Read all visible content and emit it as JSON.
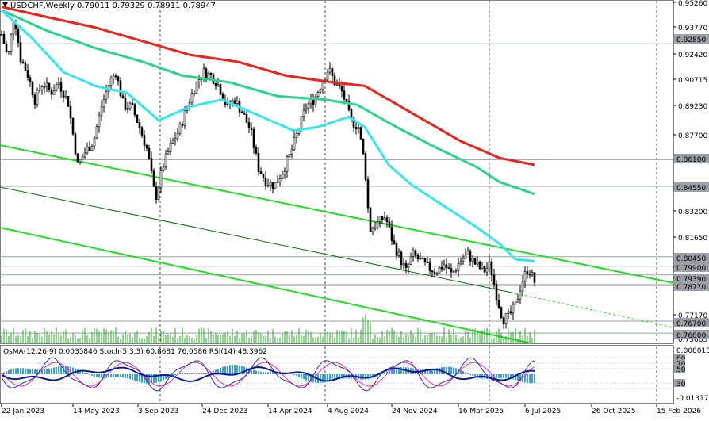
{
  "header": {
    "symbol": "USDCHF,Weekly",
    "ohlc": "0.79011 0.79329 0.78911 0.78947"
  },
  "price_axis": {
    "labels": [
      "0.95260",
      "0.93770",
      "0.92420",
      "0.90715",
      "0.89230",
      "0.87700",
      "0.84550",
      "0.83200",
      "0.81650",
      "0.79900",
      "0.79390",
      "0.77170",
      "0.76700",
      "0.76000",
      "0.75685"
    ],
    "tags": [
      {
        "text": "0.92850",
        "color": "#9aa0a6"
      },
      {
        "text": "0.86100",
        "color": "#9aa0a6"
      },
      {
        "text": "0.84550",
        "color": "#9aa0a6"
      },
      {
        "text": "0.80450",
        "color": "#9aa0a6"
      },
      {
        "text": "0.79900",
        "color": "#9aa0a6"
      },
      {
        "text": "0.79390",
        "color": "#9aa0a6"
      },
      {
        "text": "0.78770",
        "color": "#9aa0a6"
      },
      {
        "text": "0.76700",
        "color": "#9aa0a6"
      },
      {
        "text": "0.76000",
        "color": "#9aa0a6"
      }
    ]
  },
  "osc": {
    "label": "OsMA(12,26,9) 0.0035846  Stoch(5,3,3) 60.8681 76.0586  RSI(14) 48.3962",
    "axis": [
      "0.0080188",
      "80",
      "70",
      "50",
      "30",
      "-0.0131727"
    ]
  },
  "time_axis": [
    "22 Jan 2023",
    "14 May 2023",
    "3 Sep 2023",
    "24 Dec 2023",
    "14 Apr 2024",
    "4 Aug 2024",
    "24 Nov 2024",
    "16 Mar 2025",
    "6 Jul 2025",
    "26 Oct 2025",
    "15 Feb 2026"
  ],
  "colors": {
    "ma_red": "#e8251c",
    "ma_green": "#2ad48a",
    "ma_cyan": "#35e6ef",
    "channel": "#22dd22",
    "candle": "#000000",
    "osma": "#3aa0d8",
    "stoch_main": "#0a1a9e",
    "stoch_sig": "#ff2aa6",
    "rsi": "#0a1a9e"
  }
}
